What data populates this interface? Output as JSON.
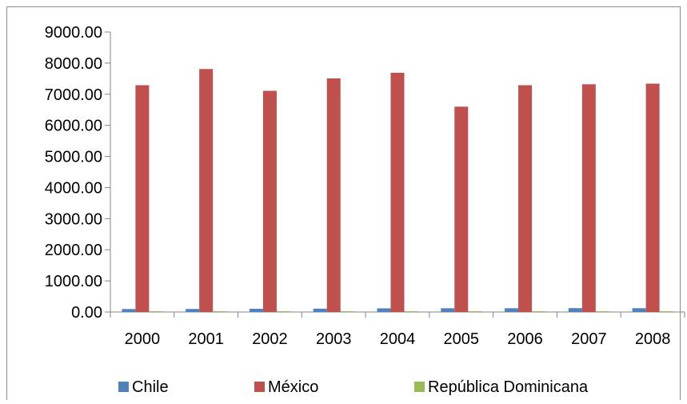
{
  "chart_data": {
    "type": "bar",
    "title": "",
    "xlabel": "",
    "ylabel": "",
    "categories": [
      "2000",
      "2001",
      "2002",
      "2003",
      "2004",
      "2005",
      "2006",
      "2007",
      "2008"
    ],
    "ylim": [
      0,
      9000
    ],
    "yticks": [
      "0.00",
      "1000.00",
      "2000.00",
      "3000.00",
      "4000.00",
      "5000.00",
      "6000.00",
      "7000.00",
      "8000.00",
      "9000.00"
    ],
    "grid": false,
    "legend_position": "bottom",
    "series": [
      {
        "name": "Chile",
        "color": "#4f81bd",
        "values": [
          95,
          98,
          104,
          108,
          118,
          120,
          121,
          124,
          122
        ]
      },
      {
        "name": "México",
        "color": "#c0504d",
        "values": [
          7290,
          7810,
          7110,
          7510,
          7690,
          6600,
          7290,
          7320,
          7340
        ]
      },
      {
        "name": "República Dominicana",
        "color": "#9bbb59",
        "values": [
          8,
          8,
          9,
          9,
          9,
          9,
          9,
          9,
          9
        ]
      }
    ]
  }
}
